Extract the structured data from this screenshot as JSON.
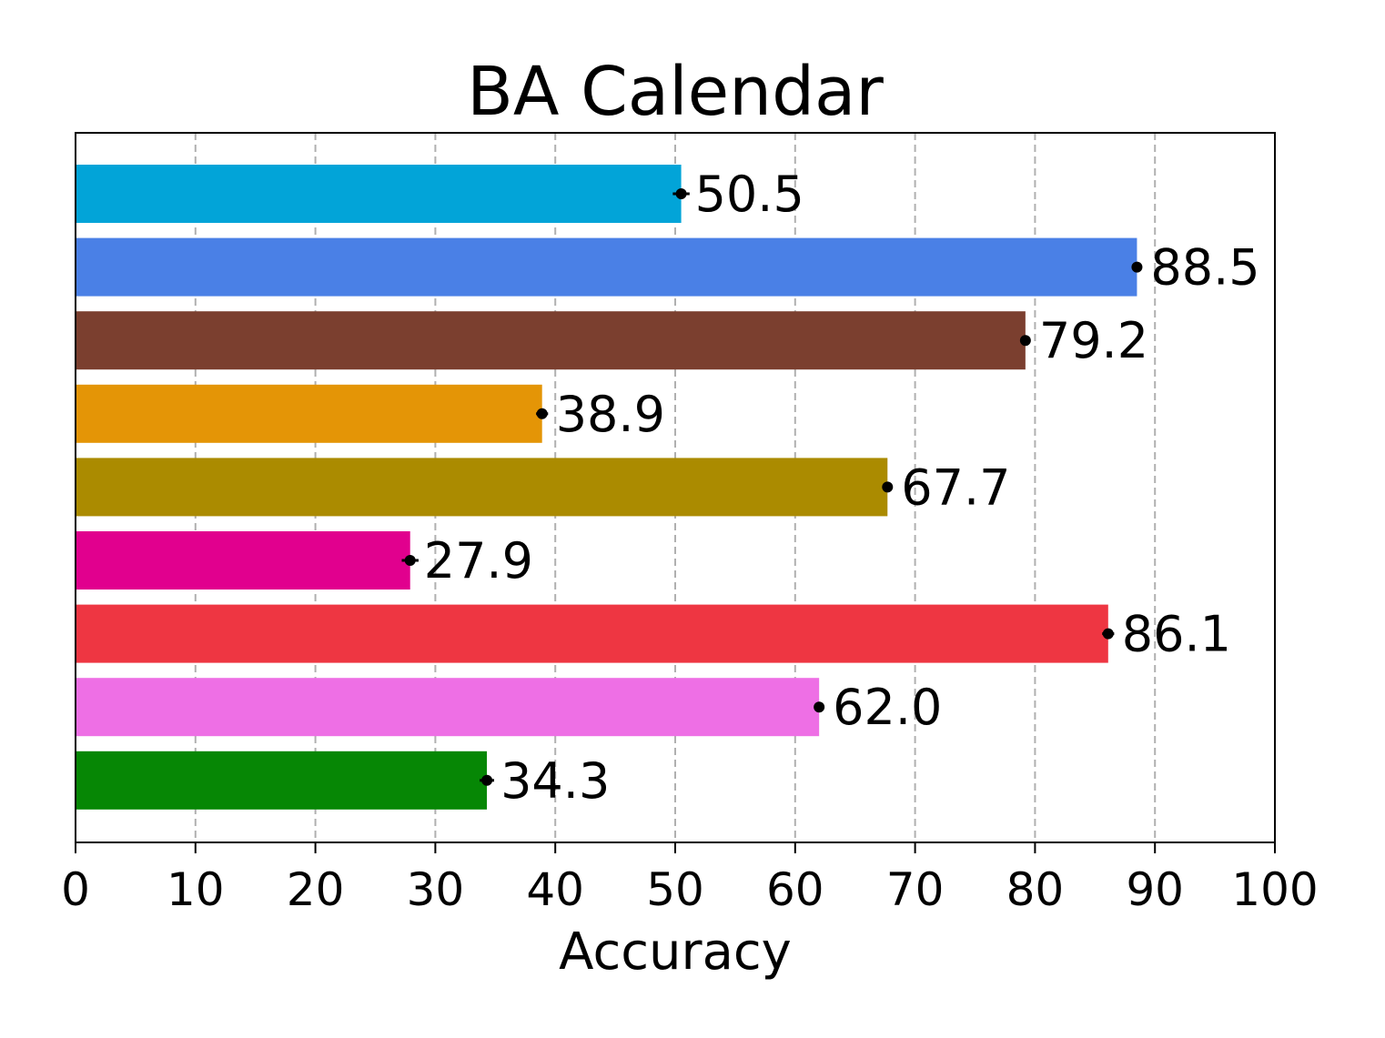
{
  "chart_data": {
    "type": "bar",
    "orientation": "horizontal",
    "title": "BA Calendar",
    "xlabel": "Accuracy",
    "ylabel": "",
    "xlim": [
      0,
      100
    ],
    "xticks": [
      "0",
      "10",
      "20",
      "30",
      "40",
      "50",
      "60",
      "70",
      "80",
      "90",
      "100"
    ],
    "grid": "vertical dashed",
    "values": [
      50.5,
      88.5,
      79.2,
      38.9,
      67.7,
      27.9,
      86.1,
      62.0,
      34.3
    ],
    "value_labels": [
      "50.5",
      "88.5",
      "79.2",
      "38.9",
      "67.7",
      "27.9",
      "86.1",
      "62.0",
      "34.3"
    ],
    "errors": [
      0.7,
      0.3,
      0.3,
      0.5,
      0.3,
      0.7,
      0.5,
      0.3,
      0.6
    ],
    "colors": [
      "#02a4d8",
      "#4a80e6",
      "#7b3f2f",
      "#e49506",
      "#ab8b00",
      "#e1008e",
      "#ee3642",
      "#ee6fe5",
      "#068705"
    ]
  }
}
